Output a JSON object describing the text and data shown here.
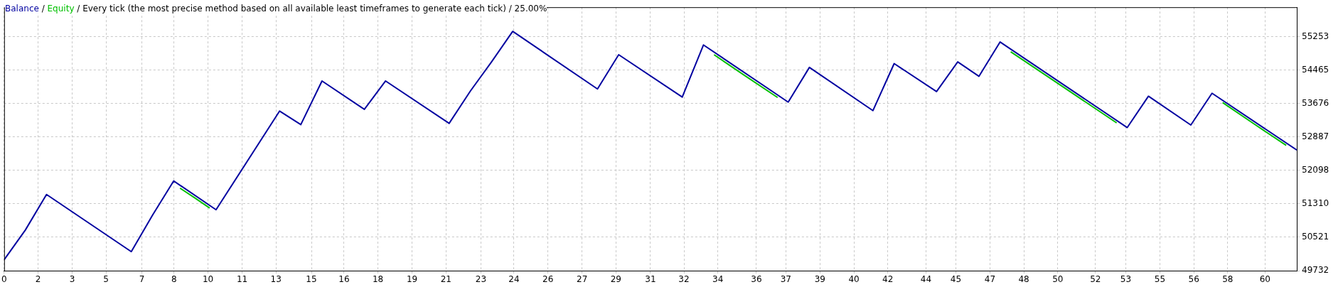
{
  "chart_data": {
    "type": "line",
    "subtitle": "Every tick (the most precise method based on all available least timeframes to generate each tick) / 25.00%",
    "annotations": [
      "/",
      "/"
    ],
    "x": [
      0,
      1,
      2,
      6,
      7,
      8,
      10,
      13,
      14,
      15,
      17,
      18,
      21,
      22,
      23,
      24,
      28,
      29,
      32,
      33,
      37,
      38,
      41,
      42,
      44,
      45,
      46,
      47,
      53,
      54,
      56,
      57,
      61
    ],
    "series": [
      {
        "name": "Balance",
        "color": "#0000a0",
        "values": [
          49990,
          50690,
          51530,
          50180,
          51040,
          51850,
          51170,
          53500,
          53180,
          54210,
          53540,
          54210,
          53210,
          53970,
          54660,
          55380,
          54020,
          54830,
          53830,
          55060,
          53710,
          54530,
          53510,
          54620,
          53960,
          54660,
          54320,
          55130,
          53110,
          53850,
          53170,
          53920,
          52580
        ]
      },
      {
        "name": "Equity",
        "color": "#00c000",
        "x": [
          8.3,
          9,
          9.7,
          9.8,
          33.5,
          35,
          36.5,
          36.6,
          47.5,
          50,
          52.5,
          52.6,
          57.5,
          59,
          60.5
        ],
        "values": [
          51680,
          51450,
          51210,
          null,
          54830,
          54320,
          53820,
          null,
          54900,
          54060,
          53220,
          null,
          53700,
          53190,
          52690
        ]
      }
    ],
    "xlim": [
      0,
      61
    ],
    "xticks": [
      {
        "value": 0,
        "label": "0"
      },
      {
        "value": 1.6,
        "label": "2"
      },
      {
        "value": 3.21,
        "label": "3"
      },
      {
        "value": 4.81,
        "label": "5"
      },
      {
        "value": 6.5,
        "label": "7"
      },
      {
        "value": 8.02,
        "label": "8"
      },
      {
        "value": 9.62,
        "label": "10"
      },
      {
        "value": 11.23,
        "label": "11"
      },
      {
        "value": 12.83,
        "label": "13"
      },
      {
        "value": 14.5,
        "label": "15"
      },
      {
        "value": 16.04,
        "label": "16"
      },
      {
        "value": 17.64,
        "label": "18"
      },
      {
        "value": 19.25,
        "label": "19"
      },
      {
        "value": 20.85,
        "label": "21"
      },
      {
        "value": 22.5,
        "label": "23"
      },
      {
        "value": 24.06,
        "label": "24"
      },
      {
        "value": 25.66,
        "label": "26"
      },
      {
        "value": 27.27,
        "label": "27"
      },
      {
        "value": 28.87,
        "label": "29"
      },
      {
        "value": 30.5,
        "label": "31"
      },
      {
        "value": 32.08,
        "label": "32"
      },
      {
        "value": 33.68,
        "label": "34"
      },
      {
        "value": 35.5,
        "label": "36"
      },
      {
        "value": 36.89,
        "label": "37"
      },
      {
        "value": 38.5,
        "label": "39"
      },
      {
        "value": 40.1,
        "label": "40"
      },
      {
        "value": 41.7,
        "label": "42"
      },
      {
        "value": 43.5,
        "label": "44"
      },
      {
        "value": 44.91,
        "label": "45"
      },
      {
        "value": 46.52,
        "label": "47"
      },
      {
        "value": 48.12,
        "label": "48"
      },
      {
        "value": 49.72,
        "label": "50"
      },
      {
        "value": 51.5,
        "label": "52"
      },
      {
        "value": 52.93,
        "label": "53"
      },
      {
        "value": 54.54,
        "label": "55"
      },
      {
        "value": 56.14,
        "label": "56"
      },
      {
        "value": 57.74,
        "label": "58"
      },
      {
        "value": 59.5,
        "label": "60"
      }
    ],
    "ylim": [
      49732,
      55950
    ],
    "yticks": [
      49732,
      50521,
      51310,
      52098,
      52887,
      53676,
      54465,
      55253
    ],
    "grid": true,
    "legend": "top left",
    "marker": "none",
    "line_style": "solid"
  }
}
